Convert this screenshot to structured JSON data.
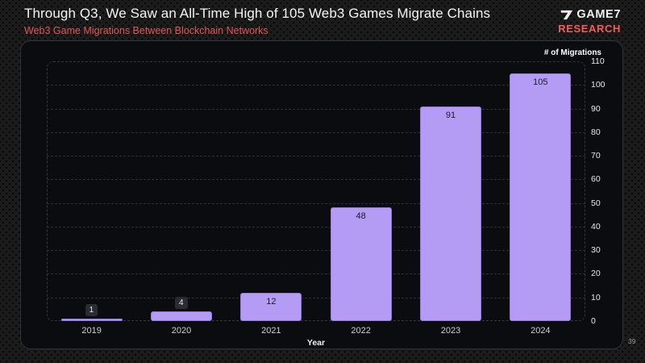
{
  "header": {
    "title": "Through Q3, We Saw an All-Time High of 105 Web3 Games Migrate Chains",
    "subtitle": "Web3 Game Migrations Between Blockchain Networks",
    "brand": {
      "name": "GAME7",
      "sub": "RESEARCH",
      "mark_icon": "game7-seven-icon"
    }
  },
  "chart_data": {
    "type": "bar",
    "categories": [
      "2019",
      "2020",
      "2021",
      "2022",
      "2023",
      "2024"
    ],
    "values": [
      1,
      4,
      12,
      48,
      91,
      105
    ],
    "title": "Web3 Game Migrations Between Blockchain Networks",
    "xlabel": "Year",
    "ylabel": "# of Migrations",
    "ylim": [
      0,
      110
    ],
    "yticks": [
      0,
      10,
      20,
      30,
      40,
      50,
      60,
      70,
      80,
      90,
      100,
      110
    ],
    "grid": true,
    "legend": false,
    "axis_side": "right",
    "bar_color": "#b49cf4",
    "bar_border_color": "#9378e2",
    "label_in_bar_color": "#1b1b26",
    "badge_bg_color": "#2b2b33",
    "accent_red": "#e05752",
    "panel_bg": "#0a0c10"
  },
  "footer": {
    "page_number": "39"
  }
}
